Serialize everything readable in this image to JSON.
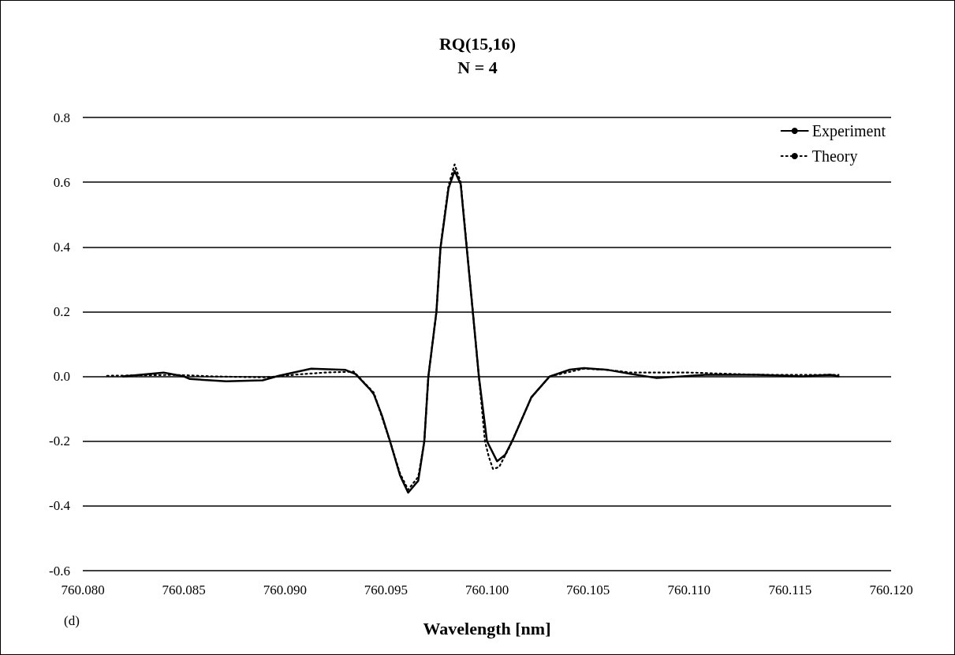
{
  "chart_data": {
    "type": "line",
    "title": "RQ(15,16)",
    "subtitle": "N = 4",
    "xlabel": "Wavelength [nm]",
    "annotations": [
      "(d)"
    ],
    "xlim": [
      760.08,
      760.12
    ],
    "xticks": [
      {
        "value": 760.08,
        "label": "760.080"
      },
      {
        "value": 760.085,
        "label": "760.085"
      },
      {
        "value": 760.09,
        "label": "760.090"
      },
      {
        "value": 760.095,
        "label": "760.095"
      },
      {
        "value": 760.1,
        "label": "760.100"
      },
      {
        "value": 760.105,
        "label": "760.105"
      },
      {
        "value": 760.11,
        "label": "760.110"
      },
      {
        "value": 760.115,
        "label": "760.115"
      },
      {
        "value": 760.12,
        "label": "760.120"
      }
    ],
    "ylim": [
      -0.6,
      0.8
    ],
    "yticks": [
      -0.6,
      -0.4,
      -0.2,
      {
        "value": 0,
        "label": "0.0"
      },
      0.2,
      0.4,
      0.6,
      0.8
    ],
    "grid": "y",
    "legend": "top right",
    "marker": "none",
    "series": [
      {
        "name": "Experiment",
        "color": "#000000",
        "line_style": "solid",
        "x": [
          760.082,
          760.084,
          760.085,
          760.0853,
          760.0871,
          760.0889,
          760.0897,
          760.0913,
          760.093,
          760.0935,
          760.0942,
          760.0944,
          760.0948,
          760.0952,
          760.0957,
          760.0961,
          760.0966,
          760.0969,
          760.0971,
          760.0975,
          760.0977,
          760.0981,
          760.0984,
          760.0987,
          760.099,
          760.0993,
          760.0996,
          760.1,
          760.1005,
          760.1009,
          760.1013,
          760.1022,
          760.1031,
          760.1041,
          760.1048,
          760.106,
          760.1071,
          760.1084,
          760.1108,
          760.1134,
          760.1156,
          760.117,
          760.1174
        ],
        "values": [
          0.0,
          0.012,
          0.0,
          -0.008,
          -0.015,
          -0.012,
          0.002,
          0.024,
          0.02,
          0.007,
          -0.039,
          -0.055,
          -0.12,
          -0.2,
          -0.306,
          -0.359,
          -0.322,
          -0.2,
          0.0,
          0.2,
          0.397,
          0.582,
          0.635,
          0.594,
          0.397,
          0.2,
          0.0,
          -0.2,
          -0.262,
          -0.242,
          -0.193,
          -0.064,
          0.0,
          0.021,
          0.026,
          0.02,
          0.008,
          -0.005,
          0.005,
          0.005,
          0.0,
          0.005,
          0.0
        ]
      },
      {
        "name": "Theory",
        "color": "#000000",
        "line_style": "dotted",
        "x": [
          760.0812,
          760.0826,
          760.0845,
          760.0865,
          760.0891,
          760.0906,
          760.092,
          760.0934,
          760.0944,
          760.0952,
          760.0957,
          760.0961,
          760.0966,
          760.0969,
          760.0971,
          760.0975,
          760.0977,
          760.0981,
          760.0984,
          760.0987,
          760.099,
          760.0993,
          760.0996,
          760.0999,
          760.1001,
          760.1003,
          760.1006,
          760.1011,
          760.1022,
          760.1031,
          760.1048,
          760.106,
          760.1071,
          760.11,
          760.1134,
          760.1174
        ],
        "values": [
          0.002,
          0.003,
          0.005,
          0.0,
          -0.003,
          0.006,
          0.012,
          0.015,
          -0.05,
          -0.2,
          -0.3,
          -0.35,
          -0.31,
          -0.2,
          0.0,
          0.2,
          0.4,
          0.59,
          0.655,
          0.6,
          0.4,
          0.2,
          0.0,
          -0.2,
          -0.25,
          -0.286,
          -0.28,
          -0.22,
          -0.065,
          0.0,
          0.024,
          0.02,
          0.012,
          0.012,
          0.005,
          0.005
        ]
      }
    ]
  }
}
